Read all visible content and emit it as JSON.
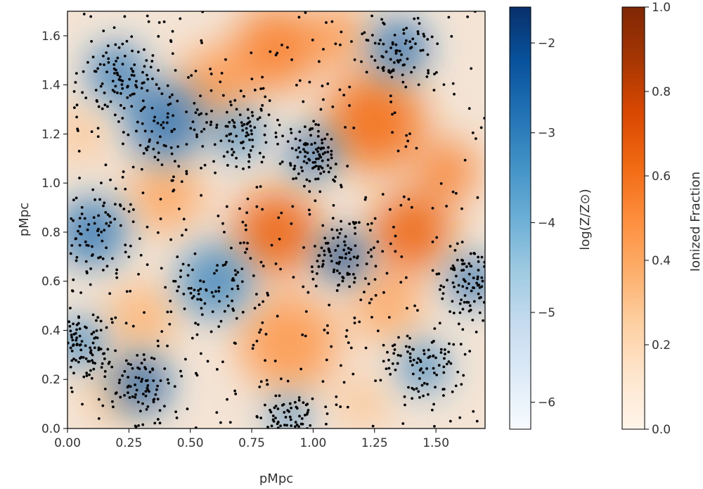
{
  "chart_data": {
    "type": "heatmap",
    "xlabel": "pMpc",
    "ylabel": "pMpc",
    "xlim": [
      0.0,
      1.7
    ],
    "ylim": [
      0.0,
      1.7
    ],
    "xticks": [
      "0.00",
      "0.25",
      "0.50",
      "0.75",
      "1.00",
      "1.25",
      "1.50"
    ],
    "yticks": [
      "0.0",
      "0.2",
      "0.4",
      "0.6",
      "0.8",
      "1.0",
      "1.2",
      "1.4",
      "1.6"
    ],
    "layers": [
      {
        "name": "log(Z/Z⊙)",
        "cmap": "Blues"
      },
      {
        "name": "Ionized Fraction",
        "cmap": "Oranges"
      }
    ],
    "ionized_blobs": [
      {
        "x": 0.85,
        "y": 0.8,
        "r": 0.17,
        "v": 0.65
      },
      {
        "x": 1.4,
        "y": 0.8,
        "r": 0.16,
        "v": 0.65
      },
      {
        "x": 1.25,
        "y": 1.25,
        "r": 0.2,
        "v": 0.6
      },
      {
        "x": 0.85,
        "y": 1.55,
        "r": 0.17,
        "v": 0.55
      },
      {
        "x": 0.6,
        "y": 1.4,
        "r": 0.15,
        "v": 0.45
      },
      {
        "x": 0.9,
        "y": 0.35,
        "r": 0.2,
        "v": 0.45
      },
      {
        "x": 0.4,
        "y": 0.95,
        "r": 0.15,
        "v": 0.4
      },
      {
        "x": 0.3,
        "y": 0.45,
        "r": 0.14,
        "v": 0.35
      },
      {
        "x": 1.55,
        "y": 1.05,
        "r": 0.12,
        "v": 0.55
      },
      {
        "x": 1.3,
        "y": 0.5,
        "r": 0.14,
        "v": 0.4
      },
      {
        "x": 1.1,
        "y": 1.6,
        "r": 0.12,
        "v": 0.45
      },
      {
        "x": 0.2,
        "y": 0.15,
        "r": 0.12,
        "v": 0.3
      },
      {
        "x": 1.2,
        "y": 0.1,
        "r": 0.1,
        "v": 0.3
      },
      {
        "x": 0.05,
        "y": 1.2,
        "r": 0.1,
        "v": 0.3
      }
    ],
    "metal_blobs": [
      {
        "x": 1.12,
        "y": 0.7,
        "r": 0.1,
        "v": -1.8
      },
      {
        "x": 1.0,
        "y": 1.12,
        "r": 0.1,
        "v": -2.5
      },
      {
        "x": 0.4,
        "y": 1.25,
        "r": 0.16,
        "v": -2.6
      },
      {
        "x": 0.2,
        "y": 1.45,
        "r": 0.12,
        "v": -2.8
      },
      {
        "x": 0.1,
        "y": 0.8,
        "r": 0.14,
        "v": -2.7
      },
      {
        "x": 0.3,
        "y": 0.18,
        "r": 0.12,
        "v": -2.4
      },
      {
        "x": 0.6,
        "y": 0.6,
        "r": 0.15,
        "v": -3.0
      },
      {
        "x": 1.65,
        "y": 0.6,
        "r": 0.1,
        "v": -2.6
      },
      {
        "x": 1.35,
        "y": 1.55,
        "r": 0.12,
        "v": -2.6
      },
      {
        "x": 0.7,
        "y": 1.2,
        "r": 0.1,
        "v": -3.0
      },
      {
        "x": 1.45,
        "y": 0.25,
        "r": 0.1,
        "v": -3.0
      },
      {
        "x": 0.05,
        "y": 0.35,
        "r": 0.1,
        "v": -3.0
      },
      {
        "x": 0.9,
        "y": 0.05,
        "r": 0.08,
        "v": -3.0
      }
    ],
    "point_density": 1500
  },
  "colorbars": [
    {
      "label": "log(Z/Z⊙)",
      "cmap": "Blues",
      "range": [
        -6.3,
        -1.6
      ],
      "ticks": [
        {
          "value": -2,
          "label": "−2"
        },
        {
          "value": -3,
          "label": "−3"
        },
        {
          "value": -4,
          "label": "−4"
        },
        {
          "value": -5,
          "label": "−5"
        },
        {
          "value": -6,
          "label": "−6"
        }
      ]
    },
    {
      "label": "Ionized Fraction",
      "cmap": "Oranges",
      "range": [
        0.0,
        1.0
      ],
      "ticks": [
        {
          "value": 0.0,
          "label": "0.0"
        },
        {
          "value": 0.2,
          "label": "0.2"
        },
        {
          "value": 0.4,
          "label": "0.4"
        },
        {
          "value": 0.6,
          "label": "0.6"
        },
        {
          "value": 0.8,
          "label": "0.8"
        },
        {
          "value": 1.0,
          "label": "1.0"
        }
      ]
    }
  ],
  "colors": {
    "blues": [
      "#f7fbff",
      "#deebf7",
      "#c6dbef",
      "#9ecae1",
      "#6baed6",
      "#4292c6",
      "#2171b5",
      "#08519c",
      "#08306b"
    ],
    "oranges": [
      "#fff5eb",
      "#fee6ce",
      "#fdd0a2",
      "#fdae6b",
      "#fd8d3c",
      "#f16913",
      "#d94801",
      "#a63603",
      "#7f2704"
    ],
    "points": "#000000"
  }
}
